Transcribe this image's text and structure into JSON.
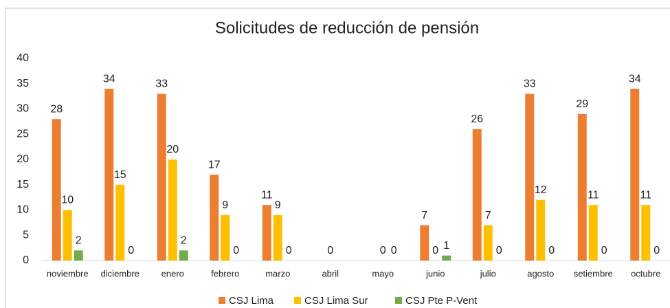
{
  "chart_data": {
    "type": "bar",
    "title": "Solicitudes de reducción de pensión",
    "categories": [
      "noviembre",
      "diciembre",
      "enero",
      "febrero",
      "marzo",
      "abril",
      "mayo",
      "junio",
      "julio",
      "agosto",
      "setiembre",
      "octubre"
    ],
    "series": [
      {
        "name": "CSJ Lima",
        "color": "#ed7d31",
        "values": [
          28,
          34,
          33,
          17,
          11,
          null,
          null,
          7,
          26,
          33,
          29,
          34
        ]
      },
      {
        "name": "CSJ Lima Sur",
        "color": "#ffc000",
        "values": [
          10,
          15,
          20,
          9,
          9,
          0,
          0,
          0,
          7,
          12,
          11,
          11
        ]
      },
      {
        "name": "CSJ Pte P-Vent",
        "color": "#70ad47",
        "values": [
          2,
          0,
          2,
          0,
          0,
          null,
          0,
          1,
          0,
          0,
          0,
          0
        ]
      }
    ],
    "ylim": [
      0,
      40
    ],
    "yticks": [
      0,
      5,
      10,
      15,
      20,
      25,
      30,
      35,
      40
    ],
    "grid": false,
    "legend": "bottom"
  }
}
